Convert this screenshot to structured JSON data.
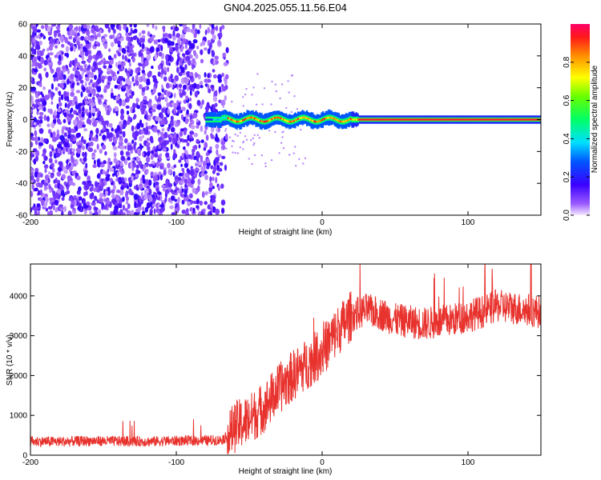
{
  "title": "GN04.2025.055.11.56.E04",
  "chart_data": [
    {
      "type": "heatmap",
      "xlabel": "Height of straight line (km)",
      "ylabel": "Frequency (Hz)",
      "xlim": [
        -200,
        150
      ],
      "ylim": [
        -60,
        60
      ],
      "x_ticks": [
        -200,
        -100,
        0,
        100
      ],
      "y_ticks": [
        -60,
        -40,
        -20,
        0,
        20,
        40,
        60
      ],
      "colorbar": {
        "label": "Normalized spectral amplitude",
        "range": [
          0,
          1
        ],
        "ticks": [
          0.0,
          0.2,
          0.4,
          0.6,
          0.8
        ]
      },
      "features": {
        "broadband_noise_x_range": [
          -200,
          -65
        ],
        "narrow_line_frequency_hz": 0,
        "narrow_line_x_range": [
          -80,
          150
        ],
        "peak_amplitude_along_line": 0.95
      }
    },
    {
      "type": "line",
      "xlabel": "Height of straight line (km)",
      "ylabel": "SNR (10 * v/v)",
      "xlim": [
        -200,
        150
      ],
      "ylim": [
        0,
        4800
      ],
      "x_ticks": [
        -200,
        -100,
        0,
        100
      ],
      "y_ticks": [
        0,
        1000,
        2000,
        3000,
        4000
      ],
      "grid": false,
      "series": [
        {
          "color": "#e8322d",
          "x": [
            -200,
            -180,
            -160,
            -140,
            -120,
            -100,
            -80,
            -70,
            -65,
            -60,
            -50,
            -40,
            -30,
            -20,
            -10,
            0,
            10,
            20,
            30,
            40,
            50,
            60,
            70,
            80,
            90,
            100,
            110,
            120,
            130,
            140,
            150
          ],
          "y": [
            350,
            340,
            360,
            350,
            345,
            360,
            370,
            380,
            450,
            700,
            900,
            1200,
            1650,
            2000,
            2300,
            2600,
            3100,
            3500,
            3650,
            3550,
            3400,
            3350,
            3300,
            3350,
            3400,
            3500,
            3600,
            3750,
            3700,
            3650,
            3600
          ]
        }
      ]
    }
  ]
}
